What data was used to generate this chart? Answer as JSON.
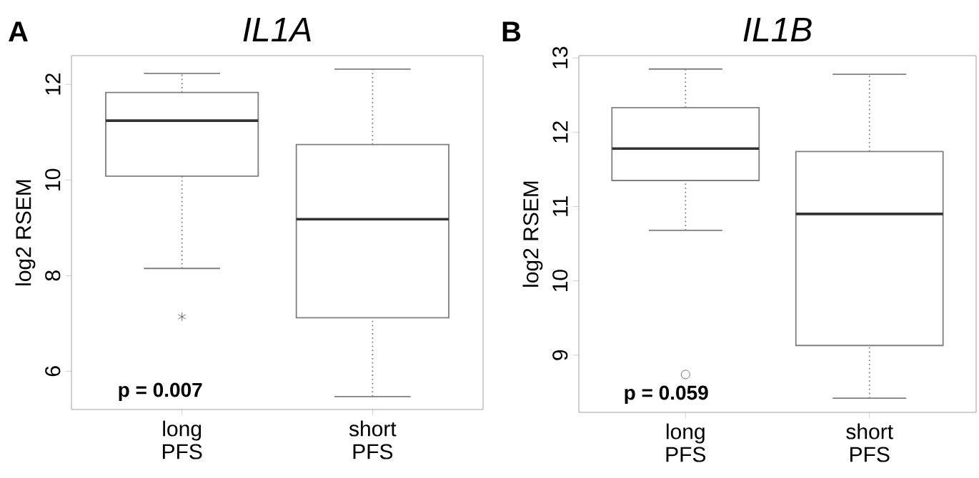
{
  "chart_data": [
    {
      "type": "box",
      "title": "*IL1A*",
      "subtitle": "**A**",
      "ylabel": "log2 RSEM",
      "categories": [
        "long PFS",
        "short PFS"
      ],
      "color": "#7f7f7f",
      "marker": "star",
      "ylim": [
        5.2,
        12.6
      ],
      "yticks": [
        6,
        8,
        10,
        12
      ],
      "annotations": [
        "p = 0.007"
      ],
      "boxes": [
        {
          "low": 8.15,
          "q1": 10.08,
          "median": 11.24,
          "q3": 11.83,
          "high": 12.23,
          "outliers": [
            7.14
          ]
        },
        {
          "low": 5.47,
          "q1": 7.12,
          "median": 9.18,
          "q3": 10.74,
          "high": 12.32
        }
      ]
    },
    {
      "type": "box",
      "title": "*IL1B*",
      "subtitle": "**B**",
      "ylabel": "log2 RSEM",
      "categories": [
        "long PFS",
        "short PFS"
      ],
      "color": "#7f7f7f",
      "marker": "circle",
      "ylim": [
        8.23,
        13.03
      ],
      "yticks": [
        9,
        10,
        11,
        12,
        13
      ],
      "annotations": [
        "p = 0.059"
      ],
      "boxes": [
        {
          "low": 10.68,
          "q1": 11.35,
          "median": 11.78,
          "q3": 12.33,
          "high": 12.85,
          "outliers": [
            8.74
          ]
        },
        {
          "low": 8.42,
          "q1": 9.13,
          "median": 10.9,
          "q3": 11.74,
          "high": 12.78
        }
      ]
    }
  ]
}
